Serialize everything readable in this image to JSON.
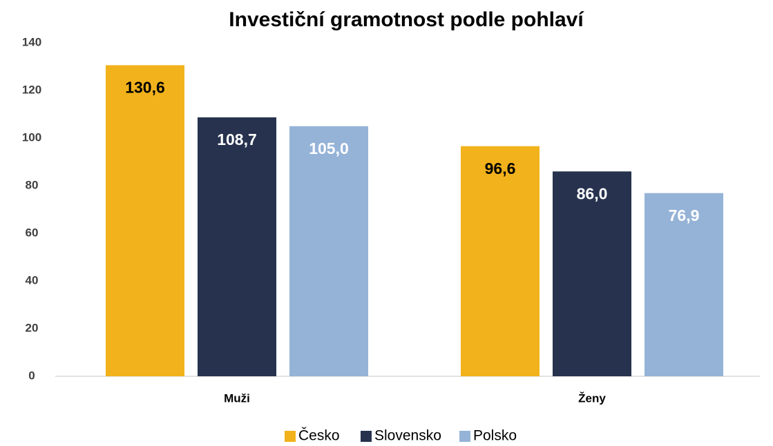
{
  "chart_data": {
    "type": "bar",
    "title": "Investiční gramotnost podle pohlaví",
    "categories": [
      "Muži",
      "Ženy"
    ],
    "series": [
      {
        "name": "Česko",
        "color": "#f2b21c",
        "values": [
          130.6,
          96.6
        ],
        "value_labels": [
          "130,6",
          "96,6"
        ]
      },
      {
        "name": "Slovensko",
        "color": "#26324e",
        "values": [
          108.7,
          86.0
        ],
        "value_labels": [
          "108,7",
          "86,0"
        ]
      },
      {
        "name": "Polsko",
        "color": "#95b3d7",
        "values": [
          105.0,
          76.9
        ],
        "value_labels": [
          "105,0",
          "76,9"
        ]
      }
    ],
    "ylim": [
      0,
      140
    ],
    "yticks": [
      0,
      20,
      40,
      60,
      80,
      100,
      120,
      140
    ],
    "grid": false,
    "legend": "bottom"
  }
}
